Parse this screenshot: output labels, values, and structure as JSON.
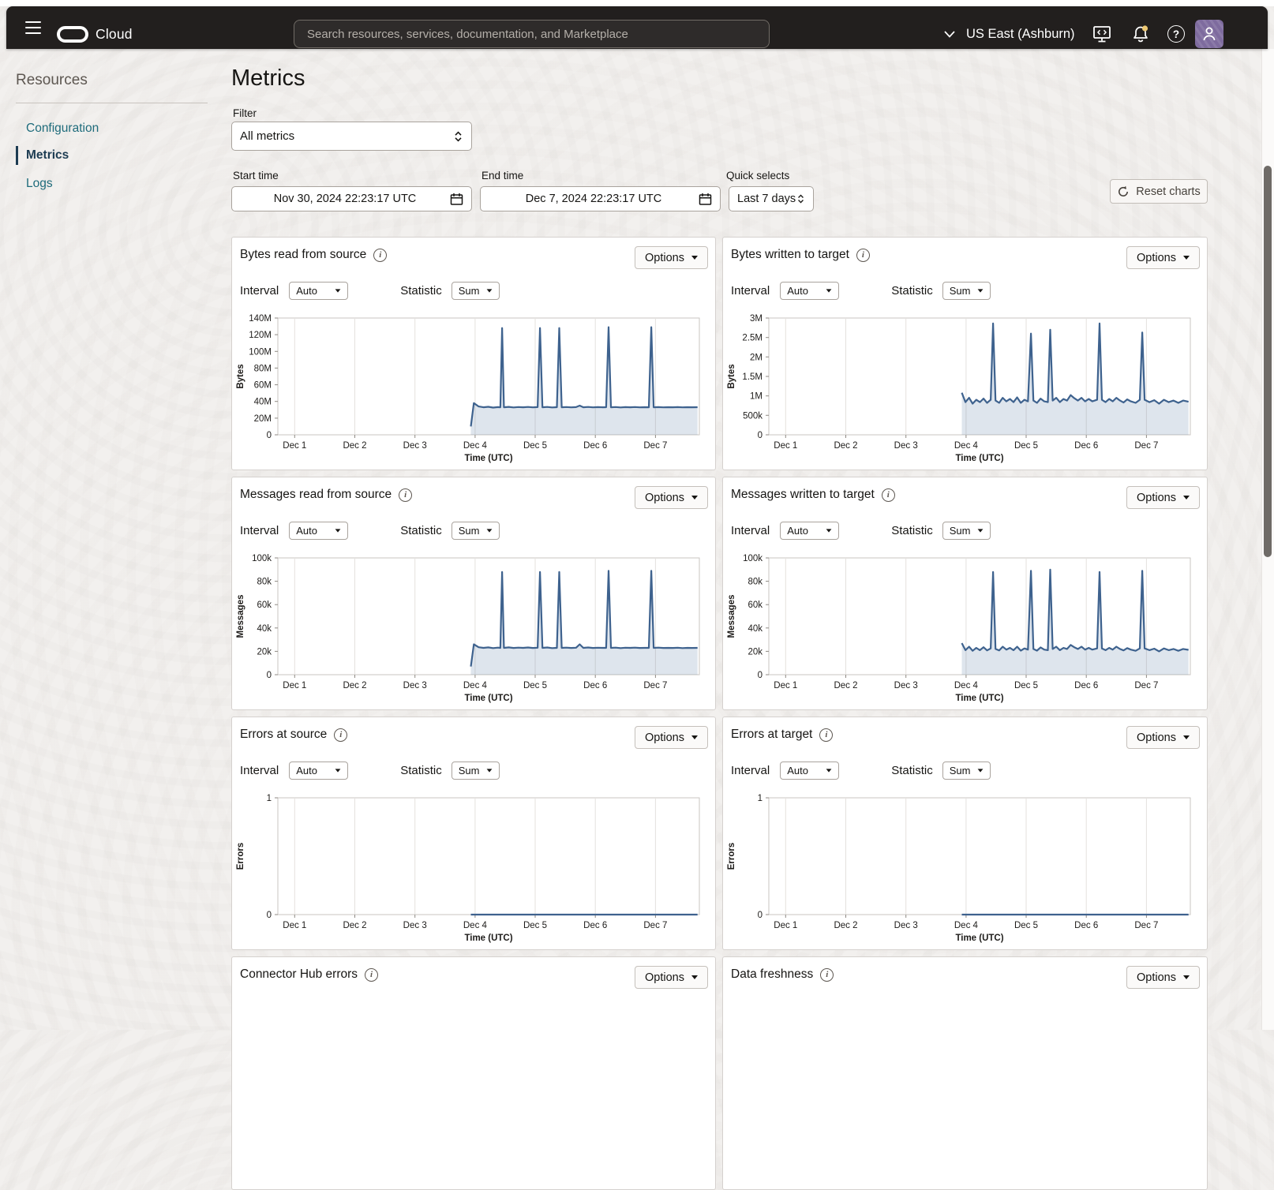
{
  "header": {
    "brand": "Cloud",
    "search_placeholder": "Search resources, services, documentation, and Marketplace",
    "region": "US East (Ashburn)"
  },
  "sidebar": {
    "heading": "Resources",
    "items": [
      {
        "label": "Configuration",
        "active": false
      },
      {
        "label": "Metrics",
        "active": true
      },
      {
        "label": "Logs",
        "active": false
      }
    ]
  },
  "page": {
    "title": "Metrics",
    "filter": {
      "label": "Filter",
      "value": "All metrics"
    },
    "start_time": {
      "label": "Start time",
      "value": "Nov 30, 2024 22:23:17 UTC"
    },
    "end_time": {
      "label": "End time",
      "value": "Dec 7, 2024 22:23:17 UTC"
    },
    "quick_selects": {
      "label": "Quick selects",
      "value": "Last 7 days"
    },
    "reset_button": "Reset charts"
  },
  "chart_controls": {
    "interval_label": "Interval",
    "interval_value": "Auto",
    "statistic_label": "Statistic",
    "statistic_value": "Sum",
    "options_label": "Options"
  },
  "icons": {
    "info": "i",
    "help": "?"
  },
  "colors": {
    "line": "#3e628e",
    "fill": "#46719c",
    "grid": "#e4e1de",
    "plot_border": "#c9c6c2",
    "link": "#1e6b7b",
    "active_nav": "#1d3c52",
    "notification_dot": "#edc873",
    "avatar_bg": "#7e6b9e"
  },
  "chart_data": {
    "type": "area",
    "x_axis": {
      "label": "Time (UTC)",
      "range": [
        0.72,
        7.73
      ],
      "ticks": [
        {
          "v": 1,
          "label": "Dec 1"
        },
        {
          "v": 2,
          "label": "Dec 2"
        },
        {
          "v": 3,
          "label": "Dec 3"
        },
        {
          "v": 4,
          "label": "Dec 4"
        },
        {
          "v": 5,
          "label": "Dec 5"
        },
        {
          "v": 6,
          "label": "Dec 6"
        },
        {
          "v": 7,
          "label": "Dec 7"
        }
      ]
    },
    "charts": [
      {
        "title": "Bytes read from source",
        "ylabel": "Bytes",
        "unit": "bytes (M)",
        "ylim": [
          0,
          140
        ],
        "yticks": [
          {
            "v": 0,
            "label": "0"
          },
          {
            "v": 20,
            "label": "20M"
          },
          {
            "v": 40,
            "label": "40M"
          },
          {
            "v": 60,
            "label": "60M"
          },
          {
            "v": 80,
            "label": "80M"
          },
          {
            "v": 100,
            "label": "100M"
          },
          {
            "v": 120,
            "label": "120M"
          },
          {
            "v": 140,
            "label": "140M"
          }
        ],
        "points": [
          [
            3.93,
            10
          ],
          [
            3.98,
            38
          ],
          [
            4.06,
            34
          ],
          [
            4.14,
            33
          ],
          [
            4.22,
            33.6
          ],
          [
            4.3,
            32.6
          ],
          [
            4.38,
            33.2
          ],
          [
            4.42,
            33
          ],
          [
            4.45,
            128
          ],
          [
            4.48,
            33
          ],
          [
            4.56,
            33.5
          ],
          [
            4.64,
            32.8
          ],
          [
            4.72,
            33.3
          ],
          [
            4.8,
            33
          ],
          [
            4.88,
            33.4
          ],
          [
            4.96,
            32.9
          ],
          [
            5.04,
            33.2
          ],
          [
            5.08,
            128
          ],
          [
            5.12,
            33
          ],
          [
            5.2,
            33.4
          ],
          [
            5.28,
            32.8
          ],
          [
            5.36,
            33.1
          ],
          [
            5.4,
            128
          ],
          [
            5.44,
            33
          ],
          [
            5.52,
            33.3
          ],
          [
            5.6,
            32.9
          ],
          [
            5.68,
            33.2
          ],
          [
            5.74,
            35
          ],
          [
            5.8,
            33
          ],
          [
            5.88,
            33.4
          ],
          [
            5.96,
            32.9
          ],
          [
            6.04,
            33.2
          ],
          [
            6.12,
            33
          ],
          [
            6.18,
            33.1
          ],
          [
            6.22,
            129
          ],
          [
            6.26,
            33
          ],
          [
            6.34,
            33.3
          ],
          [
            6.42,
            32.8
          ],
          [
            6.5,
            33.2
          ],
          [
            6.58,
            33
          ],
          [
            6.66,
            33.3
          ],
          [
            6.74,
            32.9
          ],
          [
            6.82,
            33.1
          ],
          [
            6.89,
            33
          ],
          [
            6.93,
            129
          ],
          [
            6.97,
            33
          ],
          [
            7.05,
            33.2
          ],
          [
            7.13,
            32.9
          ],
          [
            7.21,
            33.1
          ],
          [
            7.29,
            33
          ],
          [
            7.37,
            33.2
          ],
          [
            7.45,
            32.9
          ],
          [
            7.53,
            33.1
          ],
          [
            7.61,
            33
          ],
          [
            7.7,
            33.1
          ]
        ]
      },
      {
        "title": "Bytes written to target",
        "ylabel": "Bytes",
        "unit": "bytes (M)",
        "ylim": [
          0,
          3
        ],
        "yticks": [
          {
            "v": 0,
            "label": "0"
          },
          {
            "v": 0.5,
            "label": "500k"
          },
          {
            "v": 1,
            "label": "1M"
          },
          {
            "v": 1.5,
            "label": "1.5M"
          },
          {
            "v": 2,
            "label": "2M"
          },
          {
            "v": 2.5,
            "label": "2.5M"
          },
          {
            "v": 3,
            "label": "3M"
          }
        ],
        "points": [
          [
            3.93,
            1.08
          ],
          [
            3.99,
            0.84
          ],
          [
            4.05,
            0.95
          ],
          [
            4.11,
            0.8
          ],
          [
            4.17,
            0.9
          ],
          [
            4.23,
            0.84
          ],
          [
            4.29,
            0.93
          ],
          [
            4.35,
            0.82
          ],
          [
            4.41,
            0.9
          ],
          [
            4.45,
            2.86
          ],
          [
            4.49,
            0.88
          ],
          [
            4.55,
            0.82
          ],
          [
            4.61,
            0.95
          ],
          [
            4.67,
            0.86
          ],
          [
            4.73,
            0.92
          ],
          [
            4.79,
            0.84
          ],
          [
            4.85,
            0.96
          ],
          [
            4.91,
            0.82
          ],
          [
            4.97,
            0.9
          ],
          [
            5.03,
            0.86
          ],
          [
            5.08,
            2.6
          ],
          [
            5.12,
            0.88
          ],
          [
            5.18,
            0.82
          ],
          [
            5.24,
            0.93
          ],
          [
            5.3,
            0.86
          ],
          [
            5.36,
            0.84
          ],
          [
            5.4,
            2.7
          ],
          [
            5.44,
            0.88
          ],
          [
            5.5,
            0.95
          ],
          [
            5.56,
            0.84
          ],
          [
            5.62,
            0.92
          ],
          [
            5.68,
            0.88
          ],
          [
            5.74,
            1.02
          ],
          [
            5.8,
            0.94
          ],
          [
            5.86,
            0.88
          ],
          [
            5.92,
            0.95
          ],
          [
            5.98,
            0.86
          ],
          [
            6.04,
            0.92
          ],
          [
            6.1,
            0.86
          ],
          [
            6.18,
            0.9
          ],
          [
            6.22,
            2.86
          ],
          [
            6.26,
            0.9
          ],
          [
            6.32,
            0.84
          ],
          [
            6.38,
            0.92
          ],
          [
            6.44,
            0.86
          ],
          [
            6.5,
            0.95
          ],
          [
            6.56,
            0.88
          ],
          [
            6.62,
            0.83
          ],
          [
            6.68,
            0.91
          ],
          [
            6.74,
            0.86
          ],
          [
            6.82,
            0.82
          ],
          [
            6.89,
            0.9
          ],
          [
            6.93,
            2.63
          ],
          [
            6.97,
            0.9
          ],
          [
            7.05,
            0.84
          ],
          [
            7.13,
            0.89
          ],
          [
            7.21,
            0.8
          ],
          [
            7.29,
            0.9
          ],
          [
            7.37,
            0.84
          ],
          [
            7.45,
            0.88
          ],
          [
            7.53,
            0.82
          ],
          [
            7.61,
            0.88
          ],
          [
            7.7,
            0.85
          ]
        ]
      },
      {
        "title": "Messages read from source",
        "ylabel": "Messages",
        "unit": "messages (k)",
        "ylim": [
          0,
          100
        ],
        "yticks": [
          {
            "v": 0,
            "label": "0"
          },
          {
            "v": 20,
            "label": "20k"
          },
          {
            "v": 40,
            "label": "40k"
          },
          {
            "v": 60,
            "label": "60k"
          },
          {
            "v": 80,
            "label": "80k"
          },
          {
            "v": 100,
            "label": "100k"
          }
        ],
        "points": [
          [
            3.93,
            7
          ],
          [
            3.98,
            26
          ],
          [
            4.06,
            23.5
          ],
          [
            4.14,
            23
          ],
          [
            4.22,
            23.4
          ],
          [
            4.3,
            22.8
          ],
          [
            4.38,
            23.2
          ],
          [
            4.42,
            23
          ],
          [
            4.45,
            88
          ],
          [
            4.48,
            23
          ],
          [
            4.56,
            23.4
          ],
          [
            4.64,
            22.9
          ],
          [
            4.72,
            23.2
          ],
          [
            4.8,
            23
          ],
          [
            4.88,
            23.3
          ],
          [
            4.96,
            22.9
          ],
          [
            5.04,
            23.1
          ],
          [
            5.08,
            88
          ],
          [
            5.12,
            23
          ],
          [
            5.2,
            23.3
          ],
          [
            5.28,
            22.8
          ],
          [
            5.36,
            23
          ],
          [
            5.4,
            88
          ],
          [
            5.44,
            23
          ],
          [
            5.52,
            23.2
          ],
          [
            5.6,
            22.9
          ],
          [
            5.68,
            23.1
          ],
          [
            5.74,
            26
          ],
          [
            5.8,
            23
          ],
          [
            5.88,
            23.3
          ],
          [
            5.96,
            22.9
          ],
          [
            6.04,
            23.1
          ],
          [
            6.12,
            23
          ],
          [
            6.18,
            23
          ],
          [
            6.22,
            89
          ],
          [
            6.26,
            23
          ],
          [
            6.34,
            23.2
          ],
          [
            6.42,
            22.8
          ],
          [
            6.5,
            23.1
          ],
          [
            6.58,
            23
          ],
          [
            6.66,
            23.2
          ],
          [
            6.74,
            22.9
          ],
          [
            6.82,
            23
          ],
          [
            6.89,
            23
          ],
          [
            6.93,
            89
          ],
          [
            6.97,
            23
          ],
          [
            7.05,
            23.2
          ],
          [
            7.13,
            22.9
          ],
          [
            7.21,
            23
          ],
          [
            7.29,
            22.9
          ],
          [
            7.37,
            23.1
          ],
          [
            7.45,
            22.8
          ],
          [
            7.53,
            23
          ],
          [
            7.61,
            22.9
          ],
          [
            7.7,
            23
          ]
        ]
      },
      {
        "title": "Messages written to target",
        "ylabel": "Messages",
        "unit": "messages (k)",
        "ylim": [
          0,
          100
        ],
        "yticks": [
          {
            "v": 0,
            "label": "0"
          },
          {
            "v": 20,
            "label": "20k"
          },
          {
            "v": 40,
            "label": "40k"
          },
          {
            "v": 60,
            "label": "60k"
          },
          {
            "v": 80,
            "label": "80k"
          },
          {
            "v": 100,
            "label": "100k"
          }
        ],
        "points": [
          [
            3.93,
            27
          ],
          [
            3.99,
            21
          ],
          [
            4.05,
            24
          ],
          [
            4.11,
            20.5
          ],
          [
            4.17,
            23
          ],
          [
            4.23,
            21
          ],
          [
            4.29,
            23.5
          ],
          [
            4.35,
            20.8
          ],
          [
            4.41,
            22.5
          ],
          [
            4.45,
            88
          ],
          [
            4.49,
            22
          ],
          [
            4.55,
            20.8
          ],
          [
            4.61,
            24
          ],
          [
            4.67,
            21.5
          ],
          [
            4.73,
            23
          ],
          [
            4.79,
            21
          ],
          [
            4.85,
            24
          ],
          [
            4.91,
            20.6
          ],
          [
            4.97,
            22.5
          ],
          [
            5.03,
            21.5
          ],
          [
            5.08,
            89
          ],
          [
            5.12,
            22
          ],
          [
            5.18,
            20.6
          ],
          [
            5.24,
            23.4
          ],
          [
            5.3,
            21.5
          ],
          [
            5.36,
            21
          ],
          [
            5.4,
            90
          ],
          [
            5.44,
            22
          ],
          [
            5.5,
            24
          ],
          [
            5.56,
            21
          ],
          [
            5.62,
            23
          ],
          [
            5.68,
            22
          ],
          [
            5.74,
            25.5
          ],
          [
            5.8,
            23.5
          ],
          [
            5.86,
            22
          ],
          [
            5.92,
            24
          ],
          [
            5.98,
            21.5
          ],
          [
            6.04,
            23
          ],
          [
            6.1,
            21.5
          ],
          [
            6.18,
            22.5
          ],
          [
            6.22,
            88
          ],
          [
            6.26,
            22.5
          ],
          [
            6.32,
            21
          ],
          [
            6.38,
            23
          ],
          [
            6.44,
            21.5
          ],
          [
            6.5,
            24
          ],
          [
            6.56,
            22
          ],
          [
            6.62,
            20.8
          ],
          [
            6.68,
            22.8
          ],
          [
            6.74,
            21.5
          ],
          [
            6.82,
            20.5
          ],
          [
            6.89,
            22.5
          ],
          [
            6.93,
            89
          ],
          [
            6.97,
            22.5
          ],
          [
            7.05,
            21
          ],
          [
            7.13,
            22.3
          ],
          [
            7.21,
            20
          ],
          [
            7.29,
            22.5
          ],
          [
            7.37,
            21
          ],
          [
            7.45,
            22
          ],
          [
            7.53,
            20.5
          ],
          [
            7.61,
            22
          ],
          [
            7.7,
            21.3
          ]
        ]
      },
      {
        "title": "Errors at source",
        "ylabel": "Errors",
        "unit": "errors",
        "ylim": [
          0,
          1
        ],
        "yticks": [
          {
            "v": 0,
            "label": "0"
          },
          {
            "v": 1,
            "label": "1"
          }
        ],
        "points": [
          [
            3.93,
            0
          ],
          [
            7.7,
            0
          ]
        ]
      },
      {
        "title": "Errors at target",
        "ylabel": "Errors",
        "unit": "errors",
        "ylim": [
          0,
          1
        ],
        "yticks": [
          {
            "v": 0,
            "label": "0"
          },
          {
            "v": 1,
            "label": "1"
          }
        ],
        "points": [
          [
            3.93,
            0
          ],
          [
            7.7,
            0
          ]
        ]
      },
      {
        "title": "Connector Hub errors",
        "partial": true
      },
      {
        "title": "Data freshness",
        "partial": true
      }
    ]
  }
}
